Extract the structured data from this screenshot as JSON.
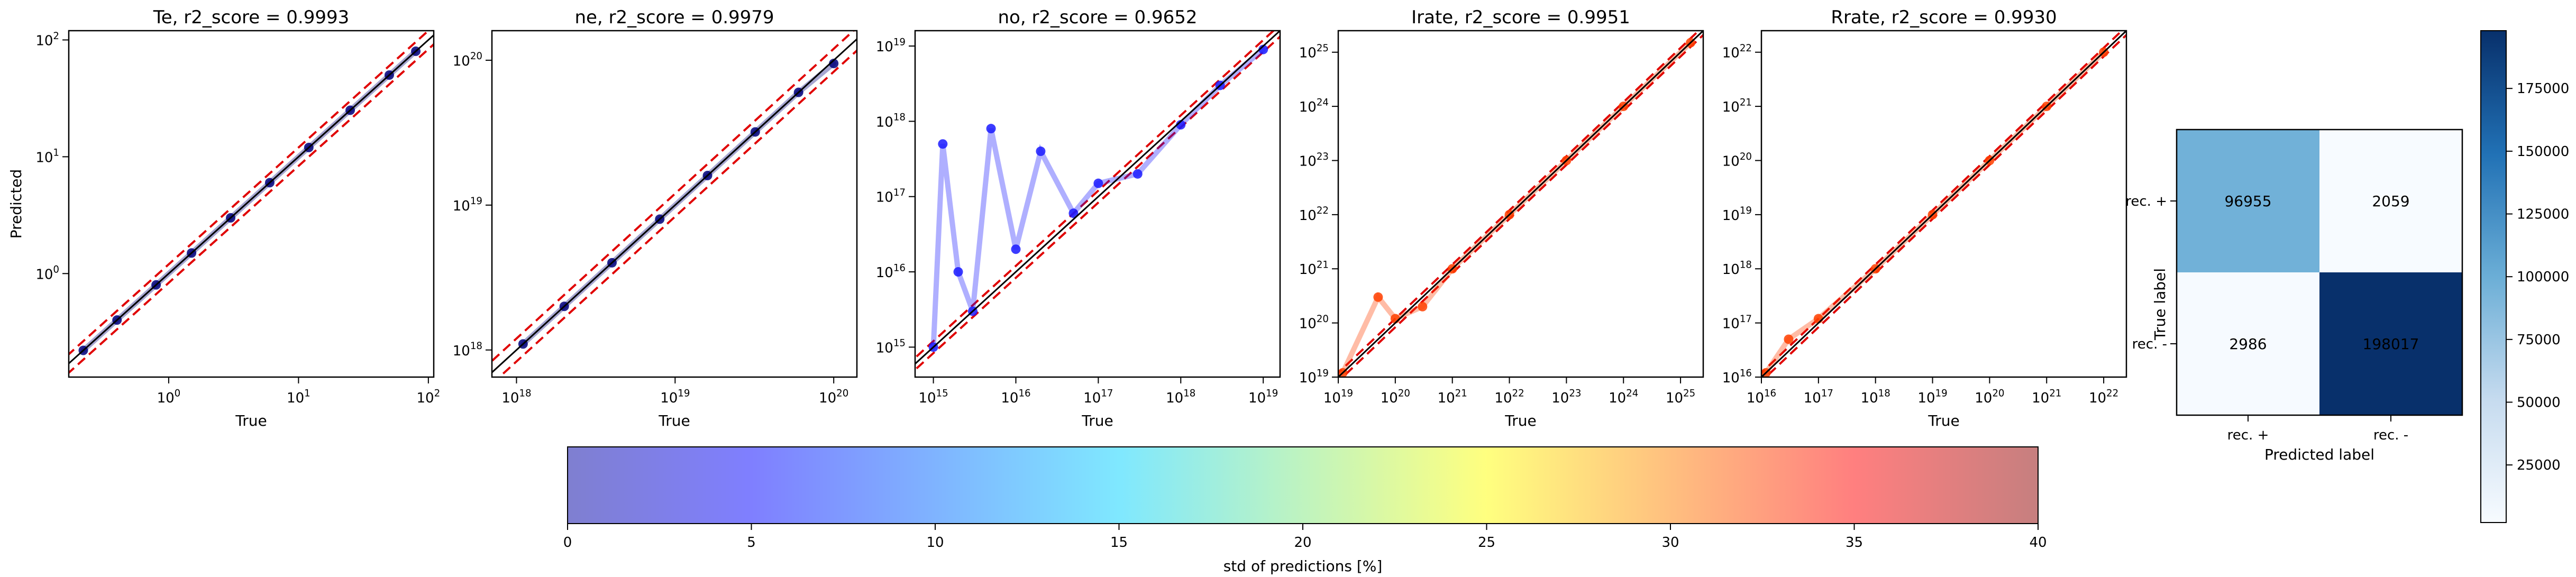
{
  "chart_data": [
    {
      "type": "scatter",
      "title": "Te, r2_score = 0.9993",
      "xlabel": "True",
      "ylabel": "Predicted",
      "scale": "log",
      "xlim": [
        0.17,
        110
      ],
      "ylim": [
        0.13,
        120
      ],
      "xticks": [
        1,
        10,
        100
      ],
      "xticklabels": [
        "10^0",
        "10^1",
        "10^2"
      ],
      "yticks": [
        1,
        10,
        100
      ],
      "yticklabels": [
        "10^0",
        "10^1",
        "10^2"
      ],
      "x": [
        0.22,
        0.4,
        0.8,
        1.5,
        3,
        6,
        12,
        25,
        50,
        80
      ],
      "y": [
        0.22,
        0.4,
        0.8,
        1.5,
        3,
        6,
        12,
        25,
        50,
        80
      ],
      "point_color": "#00007a",
      "identity_line": true,
      "band_factor": 1.2
    },
    {
      "type": "scatter",
      "title": "ne, r2_score = 0.9979",
      "xlabel": "True",
      "ylabel": "",
      "scale": "log",
      "xlim": [
        7e+17,
        1.4e+20
      ],
      "ylim": [
        6.5e+17,
        1.6e+20
      ],
      "xticks": [
        1e+18,
        1e+19,
        1e+20
      ],
      "xticklabels": [
        "10^18",
        "10^19",
        "10^20"
      ],
      "yticks": [
        1e+18,
        1e+19,
        1e+20
      ],
      "yticklabels": [
        "10^18",
        "10^19",
        "10^20"
      ],
      "x": [
        1.1e+18,
        2e+18,
        4e+18,
        8e+18,
        1.6e+19,
        3.2e+19,
        6e+19,
        1e+20
      ],
      "y": [
        1.1e+18,
        2e+18,
        4e+18,
        8e+18,
        1.6e+19,
        3.2e+19,
        6e+19,
        9.5e+19
      ],
      "point_color": "#00007a",
      "identity_line": true,
      "band_factor": 1.2
    },
    {
      "type": "scatter",
      "title": "no, r2_score = 0.9652",
      "xlabel": "True",
      "ylabel": "",
      "scale": "log",
      "xlim": [
        600000000000000.0,
        1.6e+19
      ],
      "ylim": [
        400000000000000.0,
        1.6e+19
      ],
      "xticks": [
        1000000000000000.0,
        1e+16,
        1e+17,
        1e+18,
        1e+19
      ],
      "xticklabels": [
        "10^15",
        "10^16",
        "10^17",
        "10^18",
        "10^19"
      ],
      "yticks": [
        1000000000000000.0,
        1e+16,
        1e+17,
        1e+18,
        1e+19
      ],
      "yticklabels": [
        "10^15",
        "10^16",
        "10^17",
        "10^18",
        "10^19"
      ],
      "x": [
        1000000000000000.0,
        1300000000000000.0,
        2000000000000000.0,
        3000000000000000.0,
        5000000000000000.0,
        1e+16,
        2e+16,
        5e+16,
        1e+17,
        3e+17,
        1e+18,
        3e+18,
        1e+19
      ],
      "y": [
        1000000000000000.0,
        5e+17,
        1e+16,
        3000000000000000.0,
        8e+17,
        2e+16,
        4e+17,
        6e+16,
        1.5e+17,
        2e+17,
        9e+17,
        3e+18,
        9e+18
      ],
      "point_color": "#1a1aff",
      "identity_line": true,
      "band_factor": 1.2
    },
    {
      "type": "scatter",
      "title": "Irate, r2_score = 0.9951",
      "xlabel": "True",
      "ylabel": "",
      "scale": "log",
      "xlim": [
        1e+19,
        2.5e+25
      ],
      "ylim": [
        1e+19,
        2.5e+25
      ],
      "xticks": [
        1e+19,
        1e+20,
        1e+21,
        1e+22,
        1e+23,
        1e+24,
        1e+25
      ],
      "xticklabels": [
        "10^19",
        "10^20",
        "10^21",
        "10^22",
        "10^23",
        "10^24",
        "10^25"
      ],
      "yticks": [
        1e+19,
        1e+20,
        1e+21,
        1e+22,
        1e+23,
        1e+24,
        1e+25
      ],
      "yticklabels": [
        "10^19",
        "10^20",
        "10^21",
        "10^22",
        "10^23",
        "10^24",
        "10^25"
      ],
      "x": [
        1.2e+19,
        5e+19,
        1e+20,
        3e+20,
        1e+21,
        1e+22,
        1e+23,
        1e+24,
        1.5e+25
      ],
      "y": [
        1.2e+19,
        3e+20,
        1.2e+20,
        2e+20,
        1e+21,
        1e+22,
        1e+23,
        1e+24,
        1.5e+25
      ],
      "point_color": "#ff4000",
      "identity_line": true,
      "band_factor": 1.2
    },
    {
      "type": "scatter",
      "title": "Rrate, r2_score = 0.9930",
      "xlabel": "True",
      "ylabel": "",
      "scale": "log",
      "xlim": [
        1e+16,
        2.5e+22
      ],
      "ylim": [
        1e+16,
        2.5e+22
      ],
      "xticks": [
        1e+16,
        1e+17,
        1e+18,
        1e+19,
        1e+20,
        1e+21,
        1e+22
      ],
      "xticklabels": [
        "10^16",
        "10^17",
        "10^18",
        "10^19",
        "10^20",
        "10^21",
        "10^22"
      ],
      "yticks": [
        1e+16,
        1e+17,
        1e+18,
        1e+19,
        1e+20,
        1e+21,
        1e+22
      ],
      "yticklabels": [
        "10^16",
        "10^17",
        "10^18",
        "10^19",
        "10^20",
        "10^21",
        "10^22"
      ],
      "x": [
        1.2e+16,
        3e+16,
        1e+17,
        1e+18,
        1e+19,
        1e+20,
        1e+21,
        1e+22
      ],
      "y": [
        1.2e+16,
        5e+16,
        1.2e+17,
        1e+18,
        1e+19,
        1e+20,
        1e+21,
        1e+22
      ],
      "point_color": "#ff4000",
      "identity_line": true,
      "band_factor": 1.2
    },
    {
      "type": "heatmap",
      "title": "",
      "xlabel": "Predicted label",
      "ylabel": "True label",
      "x_categories": [
        "rec. +",
        "rec. -"
      ],
      "y_categories": [
        "rec. +",
        "rec. -"
      ],
      "values": [
        [
          96955,
          2059
        ],
        [
          2986,
          198017
        ]
      ],
      "value_labels": [
        [
          "96955",
          "2059"
        ],
        [
          "2986",
          "198017"
        ]
      ],
      "colormap": "Blues",
      "colorbar": {
        "range": [
          2059,
          198017
        ],
        "ticks": [
          25000,
          50000,
          75000,
          100000,
          125000,
          150000,
          175000
        ],
        "ticklabels": [
          "25000",
          "50000",
          "75000",
          "100000",
          "125000",
          "150000",
          "175000"
        ]
      }
    },
    {
      "type": "colorbar",
      "label": "std of predictions [%]",
      "range": [
        0,
        40
      ],
      "ticks": [
        0,
        5,
        10,
        15,
        20,
        25,
        30,
        35,
        40
      ],
      "ticklabels": [
        "0",
        "5",
        "10",
        "15",
        "20",
        "25",
        "30",
        "35",
        "40"
      ],
      "colormap": "jet"
    }
  ]
}
